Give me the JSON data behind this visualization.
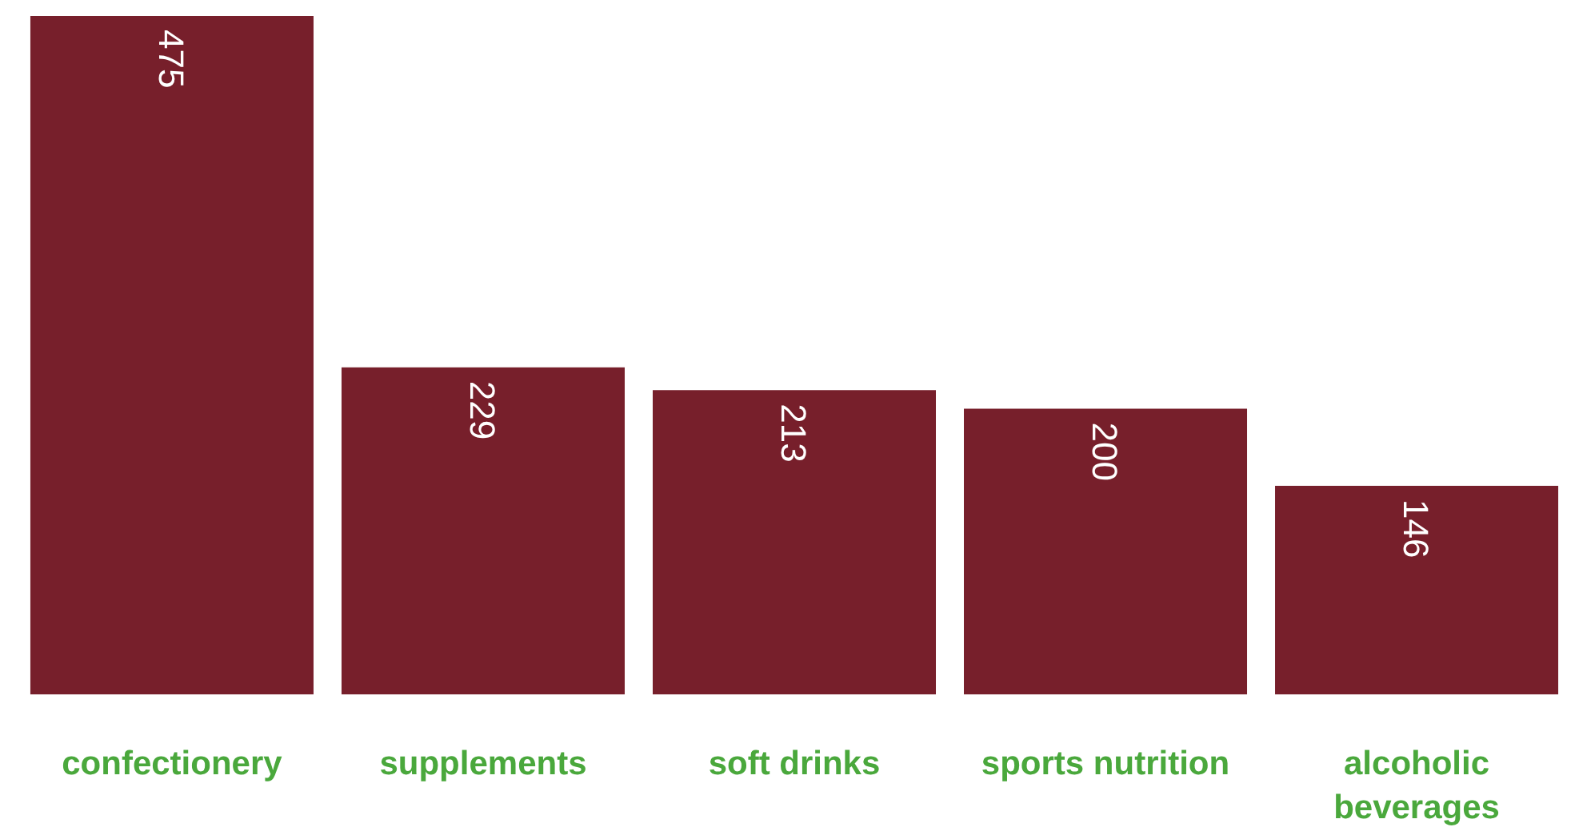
{
  "chart_data": {
    "type": "bar",
    "categories": [
      "confectionery",
      "supplements",
      "soft drinks",
      "sports nutrition",
      "alcoholic beverages"
    ],
    "values": [
      475,
      229,
      213,
      200,
      146
    ],
    "color": "#771f2b",
    "data_labels": true,
    "grid": false
  }
}
